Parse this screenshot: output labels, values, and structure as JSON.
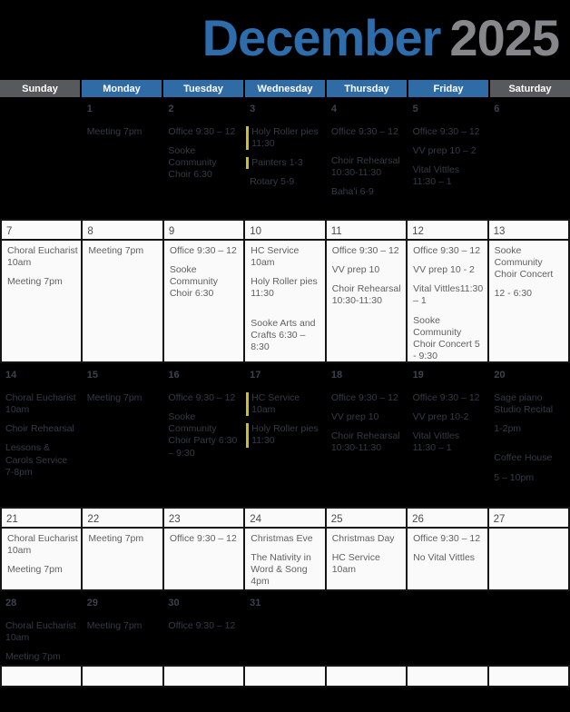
{
  "title": {
    "month": "December",
    "year": "2025"
  },
  "colors": {
    "title_blue": "#2e6dab",
    "year_gray": "#85878a",
    "hdr_blue": "#2f6ca5",
    "hdr_gray": "#58595c",
    "dark_bg": "#000000",
    "dark_text": "#343b47",
    "dark_num": "#3c424e",
    "light_bg": "#fafafa",
    "light_text": "#606060",
    "light_num": "#4c4c4c",
    "border": "#131313",
    "hl": "#cdbc2e"
  },
  "day_headers": [
    {
      "label": "Sunday",
      "variant": "gray"
    },
    {
      "label": "Monday",
      "variant": "blue"
    },
    {
      "label": "Tuesday",
      "variant": "blue"
    },
    {
      "label": "Wednesday",
      "variant": "blue"
    },
    {
      "label": "Thursday",
      "variant": "blue"
    },
    {
      "label": "Friday",
      "variant": "blue"
    },
    {
      "label": "Saturday",
      "variant": "gray"
    }
  ],
  "weeks": [
    {
      "kind": "dark",
      "days": [
        {
          "num": "",
          "events": []
        },
        {
          "num": "1",
          "events": [
            {
              "text": "Meeting 7pm"
            }
          ]
        },
        {
          "num": "2",
          "events": [
            {
              "text": "Office 9:30 – 12"
            },
            {
              "text": "Sooke Community Choir 6:30"
            }
          ]
        },
        {
          "num": "3",
          "events": [
            {
              "text": "Holy Roller pies 11:30",
              "hl": true
            },
            {
              "text": "Painters 1-3",
              "hl": true
            },
            {
              "text": "Rotary 5-9"
            }
          ]
        },
        {
          "num": "4",
          "events": [
            {
              "text": "Office 9:30 – 12"
            },
            {
              "text": "Choir Rehearsal 10:30-11:30",
              "gap": true
            },
            {
              "text": "Baha'i 6-9"
            }
          ]
        },
        {
          "num": "5",
          "events": [
            {
              "text": "Office 9:30 – 12"
            },
            {
              "text": "VV prep 10 – 2"
            },
            {
              "text": "Vital Vittles 11:30 – 1"
            }
          ]
        },
        {
          "num": "6",
          "events": []
        }
      ]
    },
    {
      "kind": "light",
      "days": [
        {
          "num": "7",
          "events": [
            {
              "text": "Choral Eucharist 10am"
            },
            {
              "text": "Meeting 7pm"
            }
          ]
        },
        {
          "num": "8",
          "events": [
            {
              "text": "Meeting 7pm"
            }
          ]
        },
        {
          "num": "9",
          "events": [
            {
              "text": "Office 9:30 – 12"
            },
            {
              "text": "Sooke Community Choir 6:30"
            }
          ]
        },
        {
          "num": "10",
          "events": [
            {
              "text": "HC Service 10am"
            },
            {
              "text": "Holy Roller pies 11:30"
            },
            {
              "text": "Sooke Arts and Crafts 6:30 – 8:30",
              "gap": true
            }
          ]
        },
        {
          "num": "11",
          "events": [
            {
              "text": "Office 9:30 – 12"
            },
            {
              "text": "VV prep 10"
            },
            {
              "text": "Choir Rehearsal 10:30-11:30"
            }
          ]
        },
        {
          "num": "12",
          "events": [
            {
              "text": "Office 9:30 – 12"
            },
            {
              "text": "VV prep 10 - 2"
            },
            {
              "text": "Vital Vittles11:30 – 1"
            },
            {
              "text": "Sooke Community Choir Concert 5 - 9:30"
            }
          ]
        },
        {
          "num": "13",
          "events": [
            {
              "text": "Sooke Community Choir Concert"
            },
            {
              "text": "12 - 6:30"
            }
          ]
        }
      ]
    },
    {
      "kind": "dark",
      "days": [
        {
          "num": "14",
          "events": [
            {
              "text": "Choral Eucharist 10am"
            },
            {
              "text": "Choir Rehearsal"
            },
            {
              "text": "Lessons & Carols Service 7-8pm"
            }
          ]
        },
        {
          "num": "15",
          "events": [
            {
              "text": "Meeting 7pm"
            }
          ]
        },
        {
          "num": "16",
          "events": [
            {
              "text": "Office 9:30 – 12"
            },
            {
              "text": "Sooke Community Choir Party 6:30 – 9:30"
            }
          ]
        },
        {
          "num": "17",
          "events": [
            {
              "text": "HC Service 10am",
              "hl": true
            },
            {
              "text": "Holy Roller pies 11:30",
              "hl": true
            }
          ]
        },
        {
          "num": "18",
          "events": [
            {
              "text": "Office 9:30 – 12"
            },
            {
              "text": "VV prep 10"
            },
            {
              "text": "Choir Rehearsal 10:30-11:30"
            }
          ]
        },
        {
          "num": "19",
          "events": [
            {
              "text": "Office 9:30 – 12"
            },
            {
              "text": "VV prep 10-2"
            },
            {
              "text": "Vital Vittles 11:30 – 1"
            }
          ]
        },
        {
          "num": "20",
          "events": [
            {
              "text": "Sage piano Studio Recital"
            },
            {
              "text": "1-2pm"
            },
            {
              "text": "Coffee House",
              "gap": true
            },
            {
              "text": "5 – 10pm"
            }
          ]
        }
      ]
    },
    {
      "kind": "light",
      "days": [
        {
          "num": "21",
          "events": [
            {
              "text": "Choral Eucharist 10am"
            },
            {
              "text": "Meeting 7pm"
            }
          ]
        },
        {
          "num": "22",
          "events": [
            {
              "text": "Meeting 7pm"
            }
          ]
        },
        {
          "num": "23",
          "events": [
            {
              "text": "Office 9:30 – 12"
            }
          ]
        },
        {
          "num": "24",
          "events": [
            {
              "text": "Christmas Eve"
            },
            {
              "text": "The Nativity in Word & Song 4pm"
            }
          ]
        },
        {
          "num": "25",
          "events": [
            {
              "text": "Christmas Day"
            },
            {
              "text": "HC Service 10am"
            }
          ]
        },
        {
          "num": "26",
          "events": [
            {
              "text": "Office 9:30 – 12"
            },
            {
              "text": "No Vital Vittles"
            }
          ]
        },
        {
          "num": "27",
          "events": []
        }
      ]
    },
    {
      "kind": "dark",
      "days": [
        {
          "num": "28",
          "events": [
            {
              "text": "Choral Eucharist 10am"
            },
            {
              "text": "Meeting 7pm"
            }
          ]
        },
        {
          "num": "29",
          "events": [
            {
              "text": "Meeting 7pm"
            }
          ]
        },
        {
          "num": "30",
          "events": [
            {
              "text": "Office 9:30 – 12"
            }
          ]
        },
        {
          "num": "31",
          "events": []
        },
        {
          "num": "",
          "events": []
        },
        {
          "num": "",
          "events": []
        },
        {
          "num": "",
          "events": []
        }
      ]
    },
    {
      "kind": "empty",
      "days": [
        {
          "num": "",
          "events": []
        },
        {
          "num": "",
          "events": []
        },
        {
          "num": "",
          "events": []
        },
        {
          "num": "",
          "events": []
        },
        {
          "num": "",
          "events": []
        },
        {
          "num": "",
          "events": []
        },
        {
          "num": "",
          "events": []
        }
      ]
    }
  ]
}
